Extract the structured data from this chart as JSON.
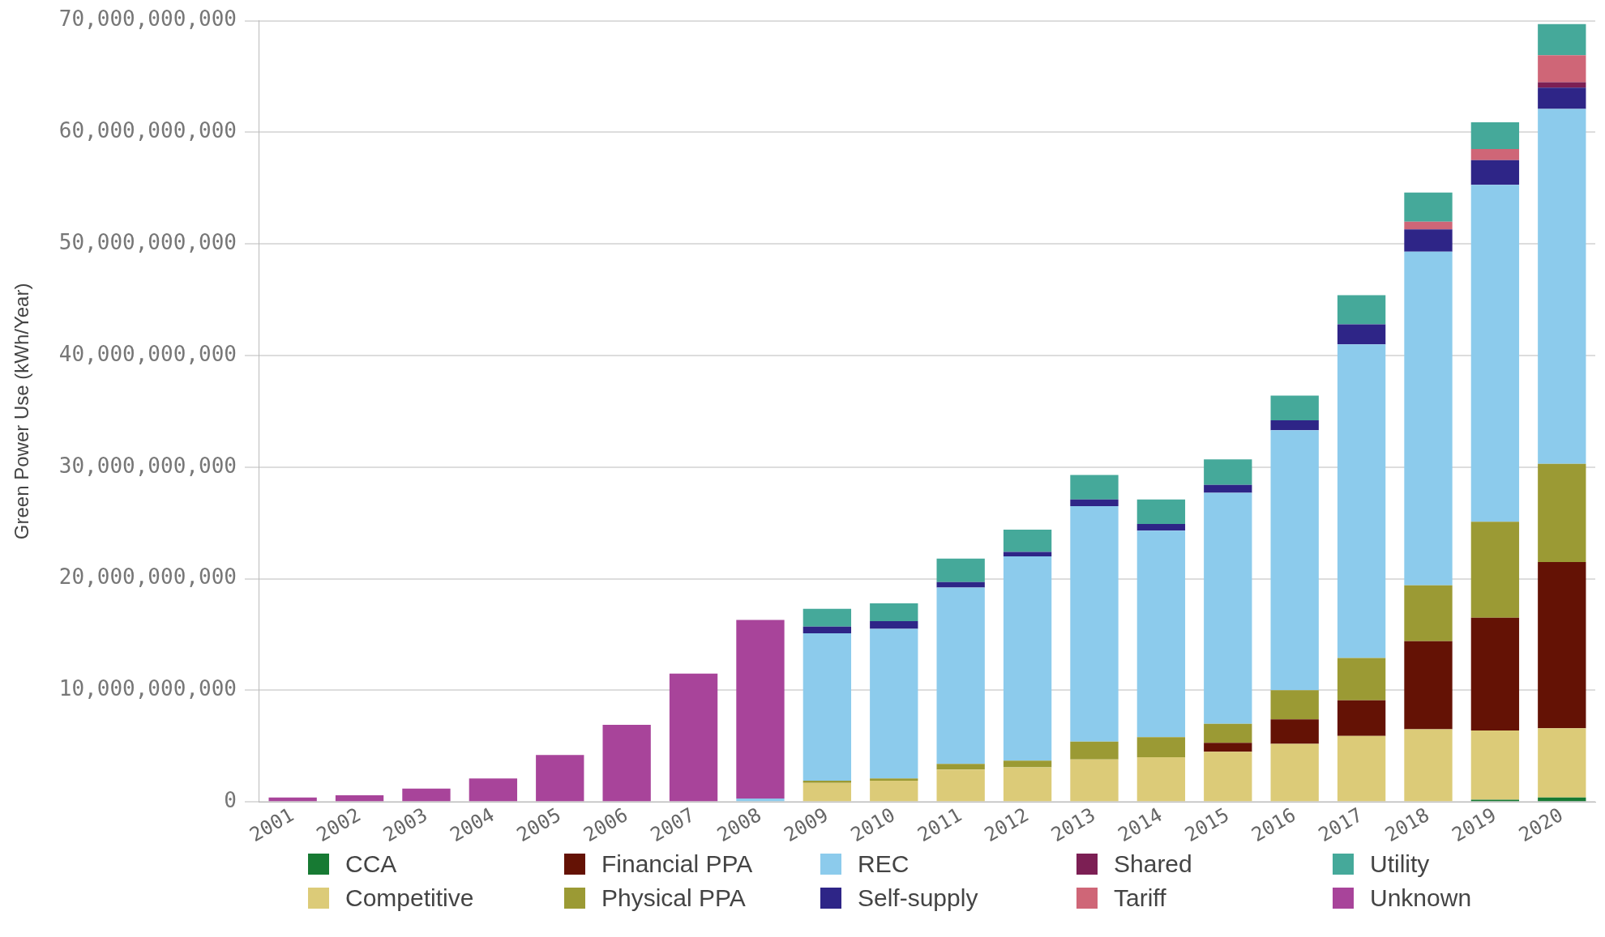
{
  "chart_data": {
    "type": "bar",
    "ylabel": "Green Power Use (kWh/Year)",
    "stacked": true,
    "grid": "y",
    "legend": "bottom",
    "categories": [
      "2001",
      "2002",
      "2003",
      "2004",
      "2005",
      "2006",
      "2007",
      "2008",
      "2009",
      "2010",
      "2011",
      "2012",
      "2013",
      "2014",
      "2015",
      "2016",
      "2017",
      "2018",
      "2019",
      "2020"
    ],
    "ylim": [
      0,
      70000000000
    ],
    "yticks": [
      0,
      {
        "value": 10000000000,
        "label": "10,000,000,000"
      },
      {
        "value": 20000000000,
        "label": "20,000,000,000"
      },
      {
        "value": 30000000000,
        "label": "30,000,000,000"
      },
      {
        "value": 40000000000,
        "label": "40,000,000,000"
      },
      {
        "value": 50000000000,
        "label": "50,000,000,000"
      },
      {
        "value": 60000000000,
        "label": "60,000,000,000"
      },
      {
        "value": 70000000000,
        "label": "70,000,000,000"
      }
    ],
    "series": [
      {
        "name": "CCA",
        "color": "#177a33",
        "values": [
          null,
          null,
          null,
          null,
          null,
          null,
          null,
          null,
          null,
          null,
          null,
          null,
          null,
          null,
          null,
          null,
          null,
          null,
          200000000,
          400000000
        ]
      },
      {
        "name": "Competitive",
        "color": "#dccb78",
        "values": [
          null,
          null,
          null,
          null,
          null,
          null,
          null,
          null,
          1700000000,
          1900000000,
          2900000000,
          3100000000,
          3800000000,
          4000000000,
          4500000000,
          5200000000,
          5900000000,
          6500000000,
          6200000000,
          6200000000
        ]
      },
      {
        "name": "Financial PPA",
        "color": "#641205",
        "values": [
          null,
          null,
          null,
          null,
          null,
          null,
          null,
          null,
          null,
          null,
          null,
          null,
          null,
          null,
          800000000,
          2200000000,
          3200000000,
          7900000000,
          10100000000,
          14900000000
        ]
      },
      {
        "name": "Physical PPA",
        "color": "#9b9a34",
        "values": [
          null,
          null,
          null,
          null,
          null,
          null,
          null,
          null,
          200000000,
          200000000,
          500000000,
          600000000,
          1600000000,
          1800000000,
          1700000000,
          2600000000,
          3800000000,
          5000000000,
          8600000000,
          8800000000
        ]
      },
      {
        "name": "REC",
        "color": "#8ccbec",
        "values": [
          null,
          null,
          null,
          null,
          null,
          null,
          null,
          300000000,
          13200000000,
          13400000000,
          15800000000,
          18300000000,
          21100000000,
          18500000000,
          20700000000,
          23300000000,
          28100000000,
          29900000000,
          30200000000,
          31800000000
        ]
      },
      {
        "name": "Self-supply",
        "color": "#2e2587",
        "values": [
          null,
          null,
          null,
          null,
          null,
          null,
          null,
          null,
          600000000,
          700000000,
          500000000,
          400000000,
          600000000,
          600000000,
          700000000,
          900000000,
          1800000000,
          2000000000,
          2200000000,
          1900000000
        ]
      },
      {
        "name": "Shared",
        "color": "#7c1f54",
        "values": [
          null,
          null,
          null,
          null,
          null,
          null,
          null,
          null,
          null,
          null,
          null,
          null,
          null,
          null,
          null,
          null,
          null,
          null,
          null,
          500000000
        ]
      },
      {
        "name": "Tariff",
        "color": "#cf6677",
        "values": [
          null,
          null,
          null,
          null,
          null,
          null,
          null,
          null,
          null,
          null,
          null,
          null,
          null,
          null,
          null,
          null,
          null,
          700000000,
          1000000000,
          2400000000
        ]
      },
      {
        "name": "Utility",
        "color": "#45a99a",
        "values": [
          null,
          null,
          null,
          null,
          null,
          null,
          null,
          null,
          1600000000,
          1600000000,
          2100000000,
          2000000000,
          2200000000,
          2200000000,
          2300000000,
          2200000000,
          2600000000,
          2600000000,
          2400000000,
          2800000000
        ]
      },
      {
        "name": "Unknown",
        "color": "#a8449a",
        "values": [
          400000000,
          600000000,
          1200000000,
          2100000000,
          4200000000,
          6900000000,
          11500000000,
          16000000000,
          null,
          null,
          null,
          null,
          null,
          null,
          null,
          null,
          null,
          null,
          null,
          null
        ]
      }
    ]
  }
}
